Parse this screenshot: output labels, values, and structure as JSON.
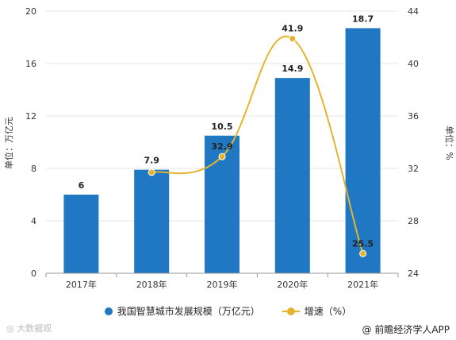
{
  "colors": {
    "bar": "#1f78c1",
    "line": "#e5b42e",
    "grid": "#e6e6e6",
    "axis": "#999999"
  },
  "chart_data": {
    "type": "bar",
    "categories": [
      "2017年",
      "2018年",
      "2019年",
      "2020年",
      "2021年"
    ],
    "series": [
      {
        "name": "我国智慧城市发展规模（万亿元）",
        "type": "bar",
        "axis": "left",
        "values": [
          6,
          7.9,
          10.5,
          14.9,
          18.7
        ]
      },
      {
        "name": "增速（%）",
        "type": "line",
        "axis": "right",
        "values": [
          null,
          31.7,
          32.9,
          41.9,
          25.5
        ]
      }
    ],
    "data_labels": {
      "bar": [
        "6",
        "7.9",
        "10.5",
        "14.9",
        "18.7"
      ],
      "line": [
        "",
        "",
        "32.9",
        "41.9",
        "25.5"
      ]
    },
    "ylabel": "单位：万亿元",
    "y2label": "单位：%",
    "ylim": [
      0,
      20
    ],
    "y2lim": [
      24,
      44
    ],
    "yticks": [
      "0",
      "4",
      "8",
      "12",
      "16",
      "20"
    ],
    "y2ticks": [
      "24",
      "28",
      "32",
      "36",
      "40",
      "44"
    ],
    "legend_position": "bottom",
    "grid": true
  },
  "legend": {
    "bar_label": "我国智慧城市发展规模（万亿元）",
    "line_label": "增速（%）"
  },
  "source": {
    "text": "@ 前瞻经济学人APP"
  },
  "watermark_bottom": "大数据观"
}
